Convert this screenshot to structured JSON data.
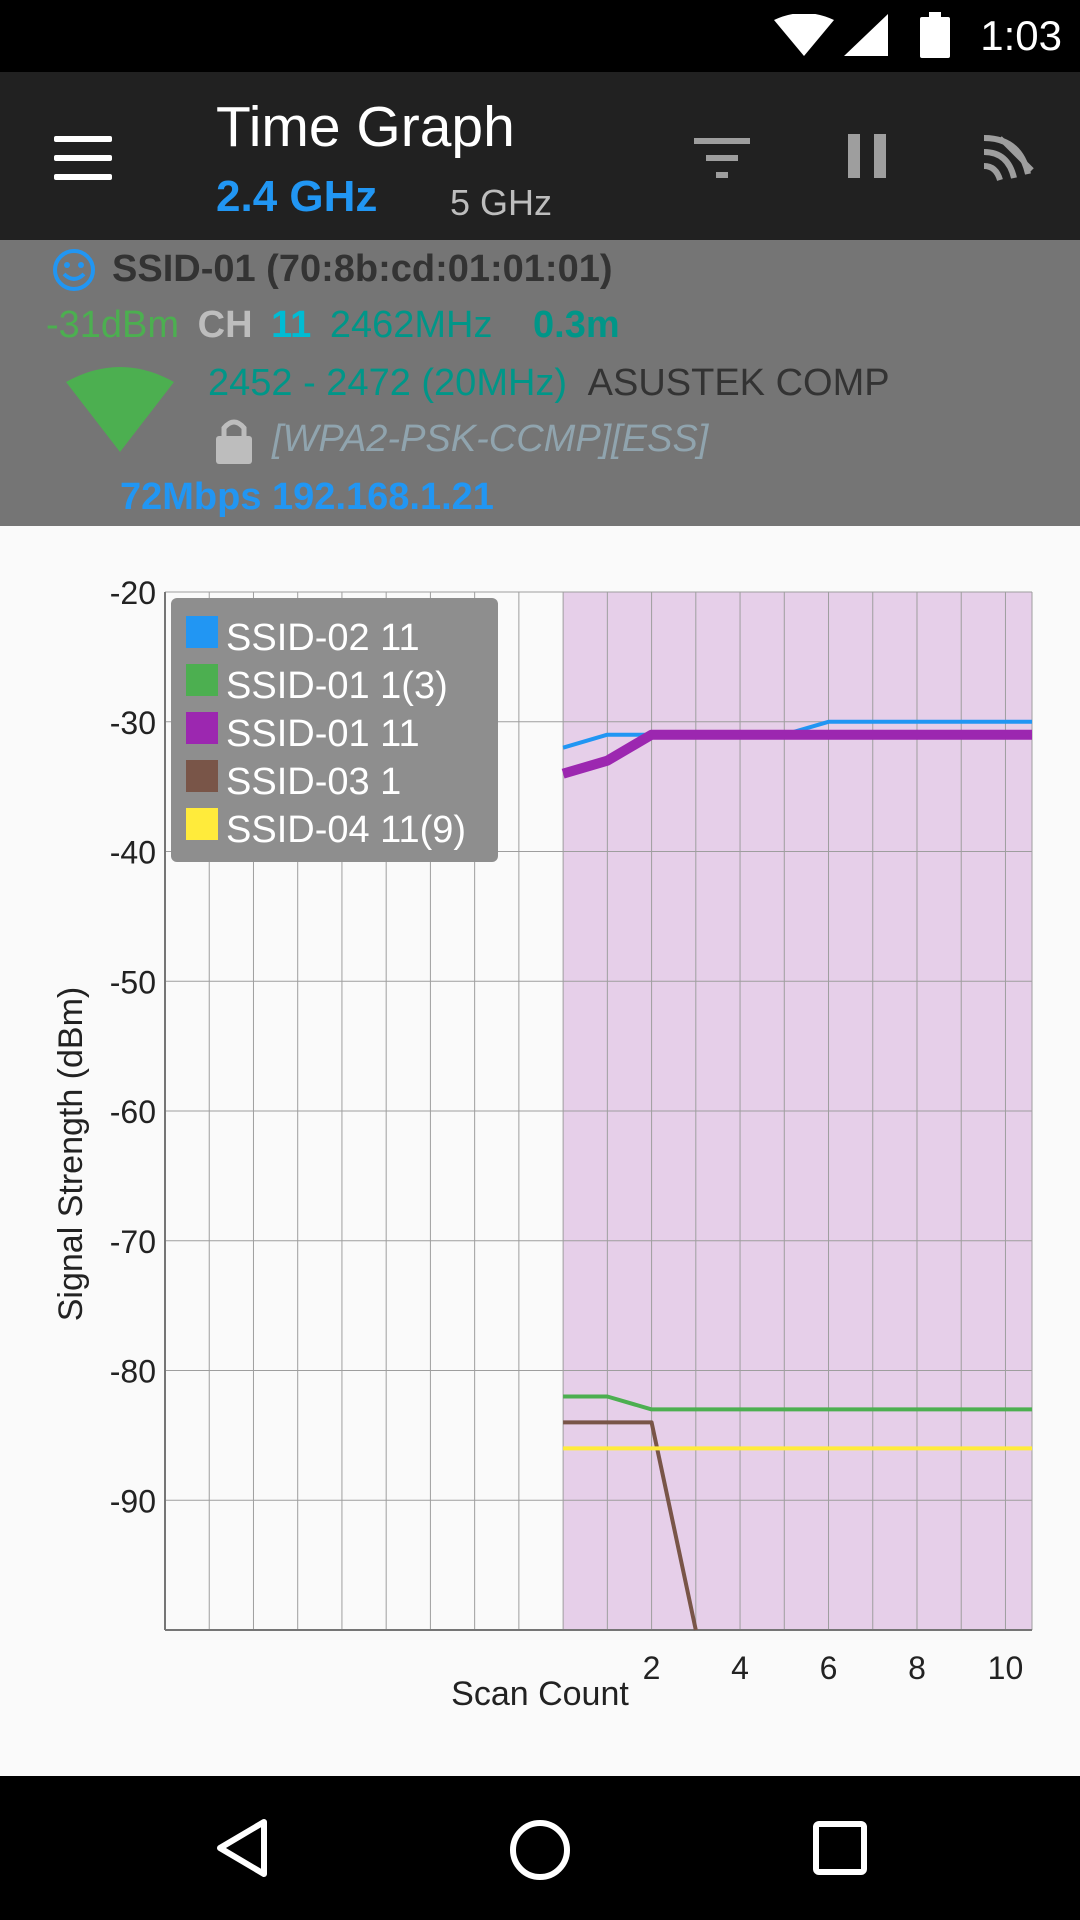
{
  "status_bar": {
    "time": "1:03",
    "icons": [
      "wifi-icon",
      "cellular-icon",
      "battery-icon"
    ]
  },
  "toolbar": {
    "title": "Time Graph",
    "band_24": "2.4 GHz",
    "band_5": "5 GHz",
    "icons": [
      "menu-icon",
      "filter-icon",
      "pause-icon",
      "scan-icon"
    ]
  },
  "connection": {
    "ssid_line": "SSID-01 (70:8b:cd:01:01:01)",
    "signal": "-31dBm",
    "ch_label": "CH",
    "channel": "11",
    "frequency": "2462MHz",
    "distance": "0.3m",
    "range": "2452 - 2472 (20MHz)",
    "vendor": "ASUSTEK COMP",
    "security": "[WPA2-PSK-CCMP][ESS]",
    "link": "72Mbps 192.168.1.21",
    "colors": {
      "signal": "#4caf50",
      "channel": "#00bcd4",
      "frequency": "#009688",
      "distance": "#009688",
      "link": "#2196f3"
    }
  },
  "chart_data": {
    "type": "line",
    "xlabel": "Scan Count",
    "ylabel": "Signal Strength (dBm)",
    "xlim": [
      -9,
      10.6
    ],
    "ylim": [
      -100,
      -20
    ],
    "x_ticks": [
      "2",
      "4",
      "6",
      "8",
      "10"
    ],
    "y_ticks": [
      "-20",
      "-30",
      "-40",
      "-50",
      "-60",
      "-70",
      "-80",
      "-90"
    ],
    "grid": true,
    "legend_position": "top-left",
    "highlight_region": {
      "x_start": 0,
      "x_end": 10.6,
      "color": "#e6cfe9"
    },
    "series": [
      {
        "name": "SSID-02 11",
        "color": "#2196f3",
        "x": [
          0,
          1,
          2,
          3,
          4,
          5,
          6,
          7,
          8,
          9,
          10,
          10.6
        ],
        "y": [
          -32,
          -31,
          -31,
          -31,
          -31,
          -31,
          -30,
          -30,
          -30,
          -30,
          -30,
          -30
        ]
      },
      {
        "name": "SSID-01 1(3)",
        "color": "#4caf50",
        "x": [
          0,
          1,
          2,
          3,
          4,
          5,
          6,
          7,
          8,
          9,
          10,
          10.6
        ],
        "y": [
          -82,
          -82,
          -83,
          -83,
          -83,
          -83,
          -83,
          -83,
          -83,
          -83,
          -83,
          -83
        ]
      },
      {
        "name": "SSID-01 11",
        "color": "#9c27b0",
        "x": [
          0,
          1,
          2,
          3,
          4,
          5,
          6,
          7,
          8,
          9,
          10,
          10.6
        ],
        "y": [
          -34,
          -33,
          -31,
          -31,
          -31,
          -31,
          -31,
          -31,
          -31,
          -31,
          -31,
          -31
        ]
      },
      {
        "name": "SSID-03 1",
        "color": "#795548",
        "x": [
          0,
          1,
          2,
          3
        ],
        "y": [
          -84,
          -84,
          -84,
          -100
        ]
      },
      {
        "name": "SSID-04 11(9)",
        "color": "#ffeb3b",
        "x": [
          0,
          1,
          2,
          3,
          4,
          5,
          6,
          7,
          8,
          9,
          10,
          10.6
        ],
        "y": [
          -86,
          -86,
          -86,
          -86,
          -86,
          -86,
          -86,
          -86,
          -86,
          -86,
          -86,
          -86
        ]
      }
    ]
  }
}
